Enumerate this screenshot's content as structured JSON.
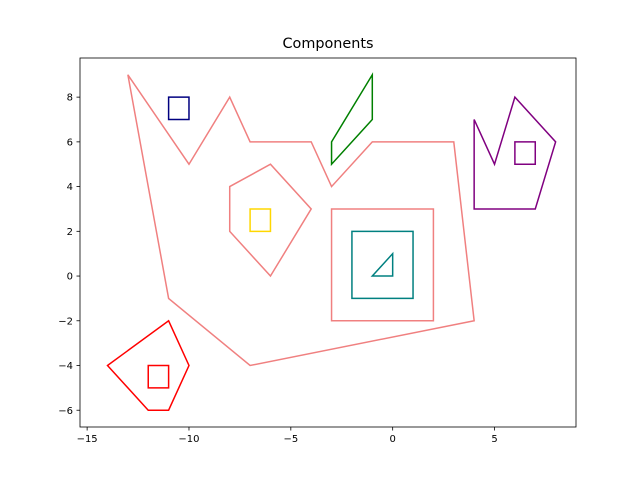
{
  "chart_data": {
    "type": "line",
    "title": "Components",
    "xlabel": "",
    "ylabel": "",
    "xlim": [
      -15.35,
      9.0
    ],
    "ylim": [
      -6.75,
      9.75
    ],
    "grid": false,
    "x_ticks": [
      -15,
      -10,
      -5,
      0,
      5
    ],
    "y_ticks": [
      -6,
      -4,
      -2,
      0,
      2,
      4,
      6,
      8
    ],
    "series": [
      {
        "color": "#f08080",
        "closed": true,
        "points": [
          [
            -13,
            9
          ],
          [
            -10,
            5
          ],
          [
            -8,
            8
          ],
          [
            -7,
            6
          ],
          [
            -4,
            6
          ],
          [
            -3,
            4
          ],
          [
            -1,
            6
          ],
          [
            3,
            6
          ],
          [
            4,
            -2
          ],
          [
            -7,
            -4
          ],
          [
            -11,
            -1
          ]
        ]
      },
      {
        "color": "#f08080",
        "closed": true,
        "points": [
          [
            -8,
            4
          ],
          [
            -6,
            5
          ],
          [
            -4,
            3
          ],
          [
            -6,
            0
          ],
          [
            -8,
            2
          ]
        ]
      },
      {
        "color": "#f08080",
        "closed": true,
        "points": [
          [
            -3,
            3
          ],
          [
            2,
            3
          ],
          [
            2,
            -2
          ],
          [
            -3,
            -2
          ]
        ]
      },
      {
        "color": "#000080",
        "closed": true,
        "points": [
          [
            -11,
            8
          ],
          [
            -10,
            8
          ],
          [
            -10,
            7
          ],
          [
            -11,
            7
          ]
        ]
      },
      {
        "color": "#008000",
        "closed": true,
        "points": [
          [
            -3,
            6
          ],
          [
            -1,
            9
          ],
          [
            -1,
            7
          ],
          [
            -3,
            5
          ]
        ]
      },
      {
        "color": "#800080",
        "closed": true,
        "points": [
          [
            4,
            7
          ],
          [
            5,
            5
          ],
          [
            6,
            8
          ],
          [
            8,
            6
          ],
          [
            7,
            3
          ],
          [
            4,
            3
          ]
        ]
      },
      {
        "color": "#800080",
        "closed": true,
        "points": [
          [
            6,
            6
          ],
          [
            7,
            6
          ],
          [
            7,
            5
          ],
          [
            6,
            5
          ]
        ]
      },
      {
        "color": "#ffd700",
        "closed": true,
        "points": [
          [
            -7,
            3
          ],
          [
            -6,
            3
          ],
          [
            -6,
            2
          ],
          [
            -7,
            2
          ]
        ]
      },
      {
        "color": "#008080",
        "closed": true,
        "points": [
          [
            -2,
            2
          ],
          [
            1,
            2
          ],
          [
            1,
            -1
          ],
          [
            -2,
            -1
          ]
        ]
      },
      {
        "color": "#008080",
        "closed": true,
        "points": [
          [
            -1,
            0
          ],
          [
            0,
            1
          ],
          [
            0,
            0
          ]
        ]
      },
      {
        "color": "#ff0000",
        "closed": true,
        "points": [
          [
            -14,
            -4
          ],
          [
            -11,
            -2
          ],
          [
            -10,
            -4
          ],
          [
            -11,
            -6
          ],
          [
            -12,
            -6
          ]
        ]
      },
      {
        "color": "#ff0000",
        "closed": true,
        "points": [
          [
            -12,
            -4
          ],
          [
            -11,
            -4
          ],
          [
            -11,
            -5
          ],
          [
            -12,
            -5
          ]
        ]
      }
    ]
  }
}
